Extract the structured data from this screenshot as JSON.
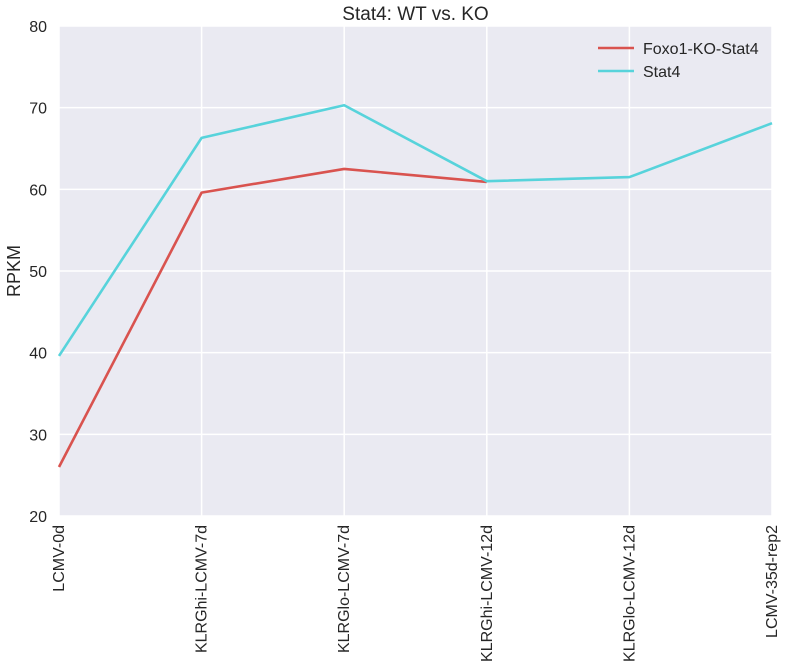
{
  "chart_data": {
    "type": "line",
    "title": "Stat4: WT vs. KO",
    "xlabel": "",
    "ylabel": "RPKM",
    "ylim": [
      20,
      80
    ],
    "yticks": [
      20,
      30,
      40,
      50,
      60,
      70,
      80
    ],
    "grid": true,
    "legend_position": "top-right",
    "categories": [
      "LCMV-0d",
      "KLRGhi-LCMV-7d",
      "KLRGlo-LCMV-7d",
      "KLRGhi-LCMV-12d",
      "KLRGlo-LCMV-12d",
      "LCMV-35d-rep2"
    ],
    "series": [
      {
        "name": "Foxo1-KO-Stat4",
        "color": "#d9534f",
        "values": [
          26.0,
          59.6,
          62.5,
          60.9,
          null,
          null
        ]
      },
      {
        "name": "Stat4",
        "color": "#57d3db",
        "values": [
          39.6,
          66.3,
          70.3,
          61.0,
          61.5,
          68.1
        ]
      }
    ]
  }
}
